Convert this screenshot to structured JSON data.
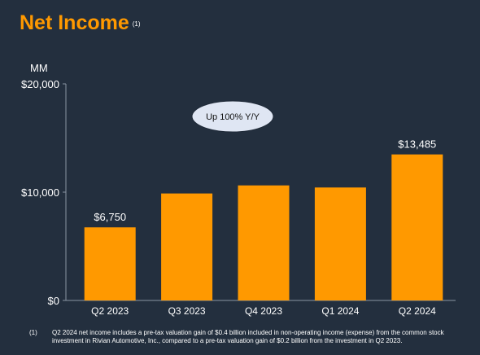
{
  "title": "Net Income",
  "title_ref": "(1)",
  "footnote": {
    "number": "(1)",
    "text": "Q2 2024 net income includes a pre-tax valuation gain of $0.4 billion included in non-operating income (expense) from the common stock investment in Rivian Automotive, Inc., compared to a pre-tax valuation gain of $0.2 billion from the investment in Q2 2023."
  },
  "callout": {
    "text": "Up 100% Y/Y"
  },
  "colors": {
    "bar": "#ff9900",
    "background": "#232f3e",
    "title": "#ff9900",
    "callout_fill": "#dfe6f3"
  },
  "chart_data": {
    "type": "bar",
    "title": "Net Income",
    "ylabel": "MM",
    "xlabel": "",
    "ylim": [
      0,
      20000
    ],
    "yticks": [
      0,
      10000,
      20000
    ],
    "ytick_labels": [
      "$0",
      "$10,000",
      "$20,000"
    ],
    "categories": [
      "Q2 2023",
      "Q3 2023",
      "Q4 2023",
      "Q1 2024",
      "Q2 2024"
    ],
    "values": [
      6750,
      9879,
      10624,
      10431,
      13485
    ],
    "data_labels": [
      "$6,750",
      "",
      "",
      "",
      "$13,485"
    ],
    "grid": false
  }
}
